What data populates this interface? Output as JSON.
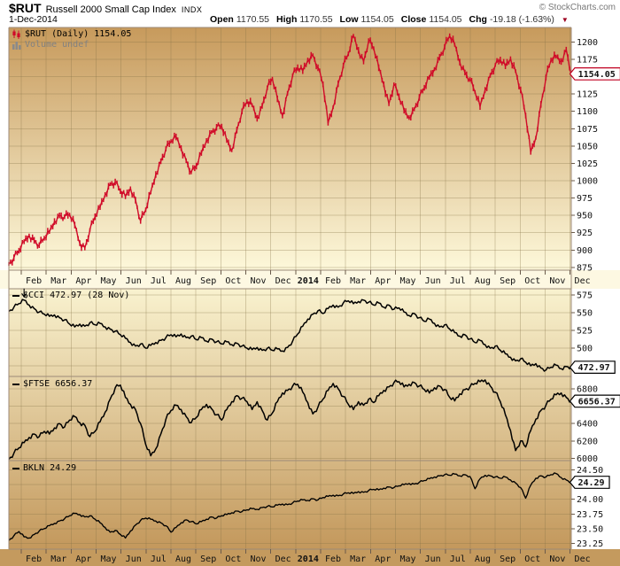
{
  "header": {
    "symbol": "$RUT",
    "name": "Russell 2000 Small Cap Index",
    "exchange": "INDX",
    "copyright": "© StockCharts.com",
    "date": "1-Dec-2014",
    "open_label": "Open",
    "open": "1170.55",
    "high_label": "High",
    "high": "1170.55",
    "low_label": "Low",
    "low": "1154.05",
    "close_label": "Close",
    "close": "1154.05",
    "chg_label": "Chg",
    "chg": "-19.18 (-1.63%)"
  },
  "legends": {
    "price": "$RUT (Daily) 1154.05",
    "volume": "Volume undef",
    "cci": "$CCI 472.97 (28 Nov)",
    "ftse": "$FTSE 6656.37",
    "bkln": "BKLN 24.29"
  },
  "chart_data": {
    "type": "line",
    "title": "$RUT Russell 2000 Small Cap Index with $CCI, $FTSE, BKLN",
    "x_axis": {
      "start": "mid-Jan 2013",
      "end": "1-Dec-2014",
      "month_labels": [
        "Feb",
        "Mar",
        "Apr",
        "May",
        "Jun",
        "Jul",
        "Aug",
        "Sep",
        "Oct",
        "Nov",
        "Dec",
        "2014",
        "Feb",
        "Mar",
        "Apr",
        "May",
        "Jun",
        "Jul",
        "Aug",
        "Sep",
        "Oct",
        "Nov",
        "Dec"
      ],
      "bold_label": "2014"
    },
    "panels": [
      {
        "id": "price",
        "symbol": "$RUT (Daily)",
        "type": "candlestick",
        "color": "#d00a28",
        "last_value": "1154.05",
        "tick_decimals": 0,
        "y_ticks_labeled": [
          1200,
          1175,
          1125,
          1100,
          1075,
          1050,
          1025,
          1000,
          975,
          950,
          925,
          900,
          875
        ],
        "y_gridlines": [
          1200,
          1175,
          1150,
          1125,
          1100,
          1075,
          1050,
          1025,
          1000,
          975,
          950,
          925,
          900,
          875
        ],
        "ylim": [
          871,
          1221
        ],
        "values": [
          880,
          889,
          899,
          912,
          921,
          914,
          907,
          917,
          926,
          941,
          950,
          948,
          951,
          936,
          910,
          903,
          929,
          948,
          962,
          980,
          995,
          998,
          985,
          977,
          989,
          972,
          942,
          958,
          983,
          1009,
          1028,
          1046,
          1057,
          1063,
          1047,
          1029,
          1012,
          1021,
          1040,
          1058,
          1070,
          1077,
          1078,
          1058,
          1044,
          1073,
          1100,
          1114,
          1109,
          1090,
          1108,
          1134,
          1147,
          1118,
          1094,
          1126,
          1152,
          1163,
          1158,
          1174,
          1181,
          1163,
          1139,
          1083,
          1106,
          1140,
          1166,
          1183,
          1209,
          1188,
          1172,
          1202,
          1191,
          1163,
          1139,
          1111,
          1139,
          1121,
          1101,
          1091,
          1103,
          1120,
          1134,
          1149,
          1161,
          1178,
          1193,
          1209,
          1196,
          1171,
          1156,
          1146,
          1128,
          1107,
          1131,
          1152,
          1167,
          1174,
          1165,
          1176,
          1158,
          1131,
          1094,
          1041,
          1062,
          1110,
          1149,
          1174,
          1179,
          1172,
          1189,
          1154
        ]
      },
      {
        "id": "cci",
        "symbol": "$CCI",
        "type": "line",
        "color": "#000000",
        "last_value": "472.97",
        "tick_decimals": 0,
        "y_ticks_labeled": [
          575,
          550,
          525,
          500
        ],
        "y_gridlines": [
          575,
          550,
          525,
          500,
          475
        ],
        "ylim": [
          460,
          584
        ],
        "values": [
          552,
          558,
          563,
          568,
          561,
          556,
          551,
          548,
          545,
          547,
          543,
          540,
          534,
          530,
          534,
          531,
          536,
          533,
          535,
          530,
          527,
          524,
          519,
          514,
          508,
          503,
          506,
          500,
          504,
          508,
          511,
          515,
          519,
          516,
          520,
          515,
          517,
          512,
          515,
          510,
          513,
          509,
          506,
          509,
          505,
          507,
          503,
          500,
          498,
          501,
          497,
          500,
          497,
          499,
          496,
          501,
          510,
          520,
          531,
          541,
          548,
          553,
          549,
          556,
          561,
          558,
          564,
          567,
          563,
          566,
          568,
          565,
          561,
          564,
          558,
          561,
          555,
          557,
          551,
          546,
          549,
          543,
          538,
          541,
          535,
          530,
          533,
          527,
          522,
          517,
          519,
          513,
          508,
          511,
          505,
          500,
          503,
          497,
          492,
          487,
          482,
          485,
          480,
          475,
          478,
          472,
          469,
          473,
          476,
          471,
          474,
          473
        ]
      },
      {
        "id": "ftse",
        "symbol": "$FTSE",
        "type": "line",
        "color": "#000000",
        "last_value": "6656.37",
        "tick_decimals": 0,
        "y_ticks_labeled": [
          6800,
          6400,
          6200,
          6000
        ],
        "y_gridlines": [
          6800,
          6600,
          6400,
          6200,
          6000
        ],
        "ylim": [
          5975,
          6940
        ],
        "values": [
          5990,
          6060,
          6120,
          6180,
          6240,
          6280,
          6250,
          6310,
          6280,
          6350,
          6400,
          6360,
          6440,
          6480,
          6410,
          6380,
          6250,
          6310,
          6420,
          6530,
          6680,
          6810,
          6840,
          6700,
          6620,
          6560,
          6400,
          6160,
          6030,
          6110,
          6280,
          6450,
          6550,
          6610,
          6560,
          6480,
          6410,
          6470,
          6560,
          6620,
          6570,
          6500,
          6440,
          6560,
          6650,
          6720,
          6690,
          6650,
          6560,
          6650,
          6550,
          6440,
          6520,
          6650,
          6750,
          6780,
          6830,
          6850,
          6760,
          6640,
          6510,
          6590,
          6680,
          6780,
          6860,
          6800,
          6710,
          6620,
          6560,
          6650,
          6610,
          6680,
          6640,
          6720,
          6780,
          6820,
          6870,
          6880,
          6820,
          6850,
          6870,
          6830,
          6790,
          6750,
          6810,
          6830,
          6790,
          6700,
          6660,
          6740,
          6790,
          6820,
          6860,
          6880,
          6900,
          6830,
          6760,
          6650,
          6500,
          6320,
          6090,
          6200,
          6130,
          6320,
          6450,
          6550,
          6610,
          6680,
          6730,
          6750,
          6700,
          6656
        ]
      },
      {
        "id": "bkln",
        "symbol": "BKLN",
        "type": "line",
        "color": "#000000",
        "last_value": "24.29",
        "tick_decimals": 2,
        "y_ticks_labeled": [
          24.5,
          24.0,
          23.75,
          23.5,
          23.25
        ],
        "y_gridlines": [
          24.5,
          24.25,
          24.0,
          23.75,
          23.5,
          23.25
        ],
        "ylim": [
          23.15,
          24.66
        ],
        "values": [
          23.3,
          23.38,
          23.45,
          23.36,
          23.34,
          23.4,
          23.46,
          23.5,
          23.55,
          23.59,
          23.63,
          23.67,
          23.72,
          23.76,
          23.74,
          23.7,
          23.72,
          23.66,
          23.6,
          23.52,
          23.44,
          23.47,
          23.4,
          23.34,
          23.46,
          23.56,
          23.64,
          23.68,
          23.66,
          23.63,
          23.6,
          23.55,
          23.44,
          23.52,
          23.6,
          23.65,
          23.62,
          23.58,
          23.62,
          23.66,
          23.7,
          23.68,
          23.72,
          23.74,
          23.77,
          23.8,
          23.79,
          23.82,
          23.84,
          23.83,
          23.86,
          23.88,
          23.87,
          23.9,
          23.92,
          23.91,
          23.94,
          23.97,
          23.99,
          23.98,
          24.01,
          23.99,
          24.03,
          24.05,
          24.07,
          24.06,
          24.09,
          24.11,
          24.1,
          24.13,
          24.12,
          24.15,
          24.17,
          24.16,
          24.19,
          24.21,
          24.2,
          24.23,
          24.25,
          24.27,
          24.26,
          24.29,
          24.32,
          24.35,
          24.38,
          24.4,
          24.42,
          24.41,
          24.43,
          24.4,
          24.42,
          24.39,
          24.18,
          24.35,
          24.41,
          24.4,
          24.38,
          24.36,
          24.38,
          24.33,
          24.28,
          24.2,
          24.02,
          24.24,
          24.36,
          24.4,
          24.38,
          24.42,
          24.44,
          24.37,
          24.33,
          24.29
        ]
      }
    ],
    "annotations": [
      {
        "panel": "cci",
        "type": "down-arrow",
        "x_frac": 0.027
      }
    ]
  }
}
